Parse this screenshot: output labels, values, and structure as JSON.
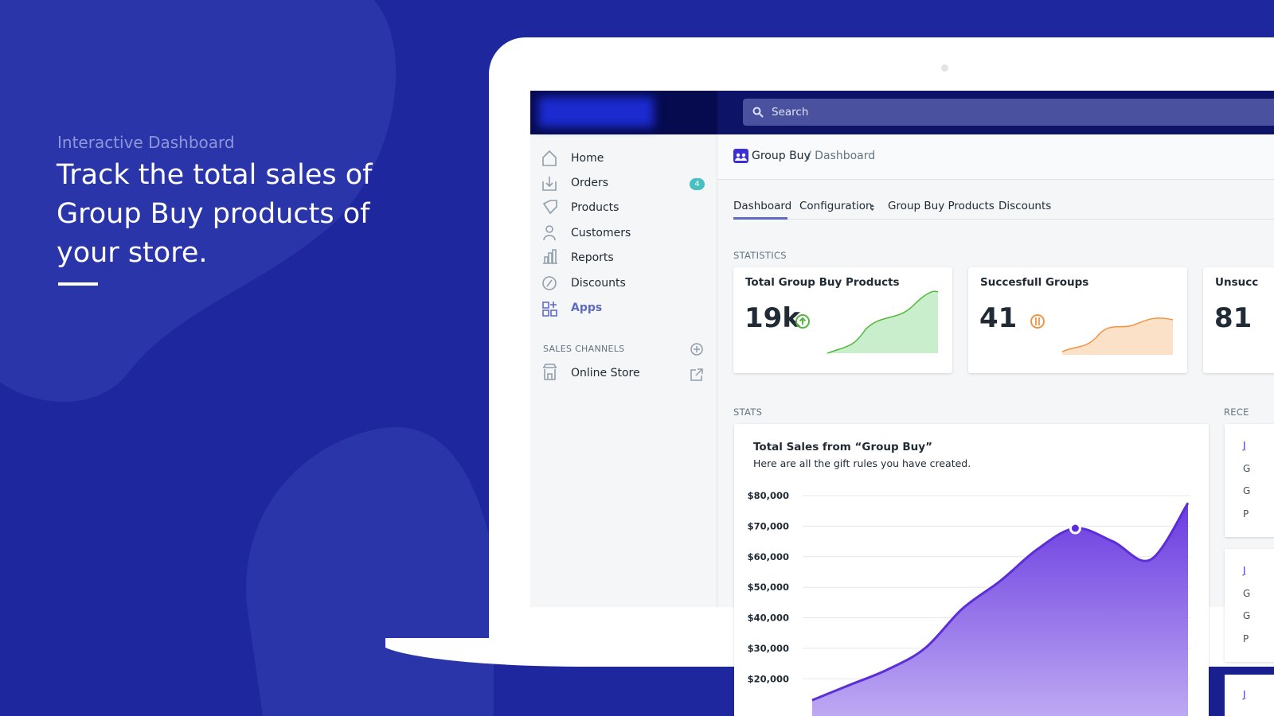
{
  "hero": {
    "eyebrow": "Interactive Dashboard",
    "headline": "Track the total sales of Group Buy products of your store."
  },
  "app": {
    "search": "Search",
    "nav": [
      {
        "label": "Home"
      },
      {
        "label": "Orders",
        "badge": 4
      },
      {
        "label": "Products"
      },
      {
        "label": "Customers"
      },
      {
        "label": "Reports"
      },
      {
        "label": "Discounts"
      },
      {
        "label": "Apps"
      }
    ],
    "sales_channels": "SALES CHANNELS",
    "online_store": "Online Store",
    "breadcrumb": {
      "app": "Group Buy",
      "page": "/ Dashboard"
    },
    "tabs": [
      "Dashboard",
      "Configuration",
      "Group Buy Products",
      "Discounts"
    ],
    "statistics_label": "STATISTICS",
    "cards": [
      {
        "title": "Total Group Buy Products",
        "value": "19k"
      },
      {
        "title": "Succesfull Groups",
        "value": "41"
      },
      {
        "title": "Unsucc",
        "value": "81"
      }
    ],
    "stats_label": "STATS",
    "recent_label": "RECE",
    "recent_letters": [
      "J",
      "G",
      "G",
      "P",
      "J",
      "G",
      "G",
      "P",
      "J"
    ]
  },
  "chart_data": {
    "type": "area",
    "title": "Total Sales from “Group Buy”",
    "subtitle": "Here are all the gift rules you have created.",
    "categories": [
      null,
      null,
      null,
      null,
      null,
      null,
      null,
      null,
      null,
      null,
      null
    ],
    "series": [
      {
        "name": null,
        "color": "#5b2fd8",
        "values": [
          13000,
          18000,
          23000,
          30000,
          43000,
          52000,
          62500,
          69300,
          65000,
          59000,
          77600
        ]
      }
    ],
    "highlight_index": 7,
    "ylim": [
      0,
      80000
    ],
    "yticks": [
      {
        "value": 20000,
        "label": "$20,000"
      },
      {
        "value": 30000,
        "label": "$30,000"
      },
      {
        "value": 40000,
        "label": "$40,000"
      },
      {
        "value": 50000,
        "label": "$50,000"
      },
      {
        "value": 60000,
        "label": "$60,000"
      },
      {
        "value": 70000,
        "label": "$70,000"
      },
      {
        "value": 80000,
        "label": "$80,000"
      }
    ],
    "grid": true
  }
}
